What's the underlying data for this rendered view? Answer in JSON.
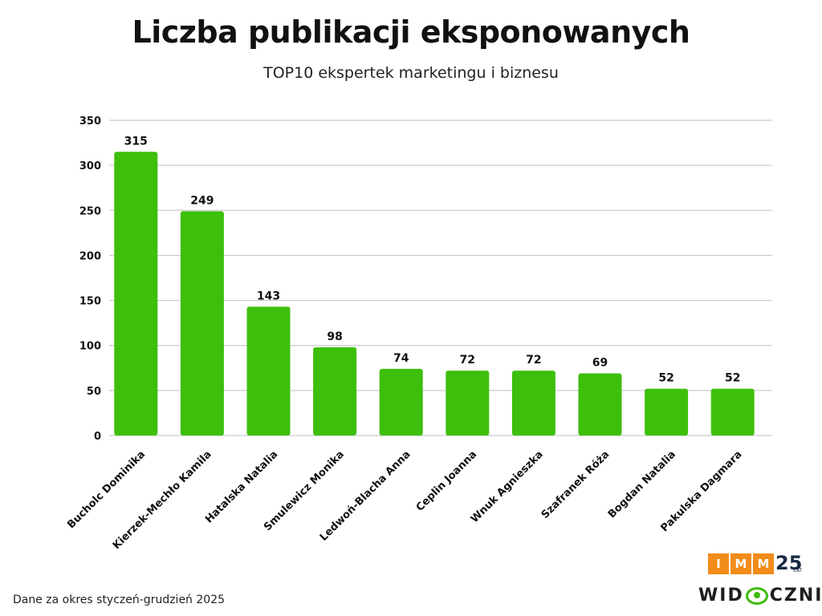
{
  "header": {
    "title": "Liczba publikacji eksponowanych",
    "subtitle": "TOP10 ekspertek marketingu i biznesu"
  },
  "footer": {
    "note": "Dane za okres styczeń-grudzień 2025"
  },
  "logos": {
    "imm_letters": [
      "I",
      "M",
      "M"
    ],
    "imm_years": "25",
    "imm_years_label": "LAT",
    "widoczni_part1": "WID",
    "widoczni_part2": "CZNI"
  },
  "colors": {
    "bar": "#3dbf0c",
    "grid": "#cccccc",
    "imm_orange": "#f28c1b"
  },
  "chart_data": {
    "type": "bar",
    "title": "Liczba publikacji eksponowanych",
    "subtitle": "TOP10 ekspertek marketingu i biznesu",
    "categories": [
      "Bucholc Dominika",
      "Kierzek-Mechło Kamila",
      "Hatalska Natalia",
      "Smulewicz Monika",
      "Ledwoń-Blacha Anna",
      "Ceplin Joanna",
      "Wnuk Agnieszka",
      "Szafranek Róża",
      "Bogdan Natalia",
      "Pakulska Dagmara"
    ],
    "values": [
      315,
      249,
      143,
      98,
      74,
      72,
      72,
      69,
      52,
      52
    ],
    "ylim": [
      0,
      350
    ],
    "yticks": [
      0,
      50,
      100,
      150,
      200,
      250,
      300,
      350
    ],
    "data_labels": true,
    "grid": true,
    "legend": "none"
  }
}
